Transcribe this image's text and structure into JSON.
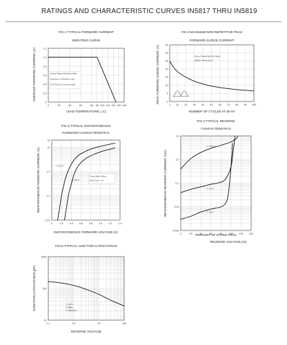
{
  "page": {
    "title": "RATINGS AND CHARACTERISTIC CURVES IN5817 THRU IN5819"
  },
  "chart_data": [
    {
      "id": "fig1",
      "type": "line",
      "title": "FIG.1-TYPICAL FORWARD CURRENT",
      "subtitle": "DERATING CURVE",
      "xlabel": "LEAD TEMPERATURE, (     C)",
      "ylabel": "AVERAGE FORWARD CURRENT, (A)",
      "xscale": "linear",
      "yscale": "linear",
      "xlim": [
        0,
        140
      ],
      "ylim": [
        0,
        1.2
      ],
      "xticks": [
        0,
        20,
        40,
        60,
        80,
        90,
        100,
        110,
        120,
        130,
        140
      ],
      "yticks": [
        0,
        0.2,
        0.4,
        0.6,
        0.8,
        1.0,
        1.2
      ],
      "xtick_labels": [
        "0",
        "20",
        "40",
        "60",
        "80",
        "90",
        "100",
        "110",
        "120",
        "130",
        "140"
      ],
      "ytick_labels": [
        "0",
        "0.2",
        "0.4",
        "0.6",
        "0.8",
        "1.0",
        "1.2"
      ],
      "grid": true,
      "series": [
        {
          "x": [
            0,
            90,
            125
          ],
          "y": [
            1.0,
            1.0,
            0.0
          ]
        }
      ],
      "annotations": [
        {
          "text": "Single Phase     Half Wave 60Hz",
          "x": 4,
          "y": 0.62
        },
        {
          "text": "Inductive or Resistive           Load",
          "x": 4,
          "y": 0.5
        },
        {
          "text": "0.375\"(9.5mm) Lead Length",
          "x": 4,
          "y": 0.38
        }
      ]
    },
    {
      "id": "fig2",
      "type": "line",
      "title": "FIG.2-MAXIMUM NON-REPETITIVE PEAK",
      "subtitle": "FORWARD SURGE CURRENT",
      "xlabel": "NUMBER OF CYCLES AT 60 Hz",
      "ylabel": "PEAK FORWARD SURGE CURRENT, (A)",
      "xscale": "linear",
      "yscale": "linear",
      "xlim": [
        1,
        100
      ],
      "ylim": [
        0,
        35
      ],
      "xticks": [
        1,
        10,
        20,
        30,
        40,
        50,
        60,
        70,
        80,
        90,
        100
      ],
      "yticks": [
        0,
        5,
        10,
        15,
        20,
        25,
        30,
        35
      ],
      "xtick_labels": [
        "1",
        "10",
        "20",
        "30",
        "40",
        "50",
        "60",
        "70",
        "80",
        "90",
        "100"
      ],
      "ytick_labels": [
        "0",
        "5",
        "10",
        "15",
        "20",
        "25",
        "30",
        "35"
      ],
      "grid": true,
      "series": [
        {
          "x": [
            1,
            5,
            10,
            20,
            30,
            40,
            50,
            60,
            70,
            80,
            90,
            100
          ],
          "y": [
            25,
            21.5,
            18.5,
            15,
            12.5,
            10.8,
            9.5,
            8.6,
            7.9,
            7.3,
            6.9,
            6.5
          ]
        }
      ],
      "annotations": [
        {
          "text": "8.3ms Single Half Sine-Wave",
          "x": 30,
          "y": 27.5
        },
        {
          "text": "(JEDEC Method)    at   T",
          "x": 30,
          "y": 25
        }
      ]
    },
    {
      "id": "fig3",
      "type": "line",
      "title": "FIG.3-TYPICAL INSTANTANEOUS",
      "subtitle": "FORWARD CHARACTERISTICS",
      "xlabel": "INSTANTANEOUS FORWARD VOLTAGE,(V)",
      "ylabel": "INSTANTANEOUS FORWARD CURRENT, (A)",
      "xscale": "linear",
      "yscale": "log",
      "xlim": [
        0,
        1.4
      ],
      "ylim": [
        0.01,
        20
      ],
      "xticks": [
        0,
        0.2,
        0.4,
        0.6,
        0.8,
        1.0,
        1.2,
        1.4
      ],
      "yticks": [
        0.01,
        0.1,
        1,
        10,
        20
      ],
      "xtick_labels": [
        "0",
        "0.2",
        "0.4",
        "0.6",
        "0.8",
        "1.0",
        "1.2",
        "1.4"
      ],
      "ytick_labels": [
        "0.01",
        "0.1",
        "1.0",
        "10",
        "20"
      ],
      "grid": true,
      "series": [
        {
          "x": [
            0.12,
            0.16,
            0.2,
            0.25,
            0.3,
            0.4,
            0.5,
            0.6,
            0.8,
            1.0,
            1.3
          ],
          "y": [
            0.01,
            0.03,
            0.1,
            0.3,
            0.7,
            2.0,
            3.8,
            5.5,
            8.5,
            11,
            15
          ]
        },
        {
          "x": [
            0.26,
            0.3,
            0.34,
            0.4,
            0.46,
            0.55,
            0.7,
            0.9,
            1.1,
            1.3
          ],
          "y": [
            0.01,
            0.03,
            0.1,
            0.3,
            0.8,
            1.8,
            3.5,
            5.5,
            7.5,
            9.5
          ]
        }
      ],
      "annotations": [
        {
          "text": "T =125     C",
          "x": 0.08,
          "y": 1.6
        },
        {
          "text": "T =25     C",
          "x": 0.42,
          "y": 0.42
        },
        {
          "text": "Pulse Width 300us",
          "x": 0.78,
          "y": 0.6
        },
        {
          "text": "Duty Cycle, 1%",
          "x": 0.78,
          "y": 0.4
        }
      ]
    },
    {
      "id": "fig4",
      "type": "line",
      "title": "FIG.4-TYPICAL REVERSE",
      "subtitle": "CHARACTERISTICS",
      "xlabel": "PERCENT OF RATED PEAK",
      "xlabel2": "REVERSE VOLTAGE,(%)",
      "ylabel": "INSTANTANEOUS REVERSE CURRENT, (mA)",
      "xscale": "linear",
      "yscale": "log",
      "xlim": [
        0,
        140
      ],
      "ylim": [
        0.001,
        10
      ],
      "xticks": [
        0,
        20,
        40,
        60,
        80,
        100,
        120,
        140
      ],
      "yticks": [
        0.001,
        0.01,
        0.1,
        1,
        10
      ],
      "xtick_labels": [
        "0",
        "20",
        "40",
        "60",
        "80",
        "100",
        "120",
        "140"
      ],
      "ytick_labels": [
        "0.001",
        "0.01",
        "0.1",
        "1.0",
        "10"
      ],
      "grid": true,
      "series": [
        {
          "x": [
            0,
            20,
            40,
            60,
            80,
            100,
            110,
            114
          ],
          "y": [
            0.4,
            1.1,
            2.0,
            3.0,
            4.0,
            5.6,
            7.5,
            10
          ]
        },
        {
          "x": [
            0,
            20,
            40,
            60,
            80,
            90,
            100,
            104,
            108
          ],
          "y": [
            0.04,
            0.055,
            0.07,
            0.09,
            0.11,
            0.16,
            0.5,
            2.0,
            10
          ]
        },
        {
          "x": [
            0,
            20,
            40,
            60,
            80,
            90,
            95,
            100,
            103
          ],
          "y": [
            0.003,
            0.004,
            0.006,
            0.008,
            0.01,
            0.015,
            0.04,
            0.5,
            5
          ]
        }
      ],
      "annotations": [
        {
          "text": "T =125    C",
          "x": 52,
          "y": 3.4
        },
        {
          "text": "T =75    C",
          "x": 52,
          "y": 0.055
        },
        {
          "text": "T =25    C",
          "x": 52,
          "y": 0.0055
        }
      ]
    },
    {
      "id": "fig5",
      "type": "line",
      "title": "FIG.5-TYPICAL JUNCTION CAPACITANCE",
      "xlabel": "REVERSE VOLTAGE",
      "ylabel": "JUNCTION CAPACITANCE,(pF)",
      "xscale": "log",
      "yscale": "log",
      "xlim": [
        0.1,
        100
      ],
      "ylim": [
        10,
        1000
      ],
      "xticks": [
        0.1,
        1,
        10,
        100
      ],
      "yticks": [
        10,
        100,
        1000
      ],
      "xtick_labels": [
        "0.1",
        "1.0",
        "10",
        "100"
      ],
      "ytick_labels": [
        "10",
        "100",
        "1000"
      ],
      "grid": true,
      "series": [
        {
          "x": [
            0.1,
            0.3,
            1,
            3,
            10,
            30,
            100
          ],
          "y": [
            165,
            150,
            125,
            95,
            65,
            42,
            28
          ]
        }
      ],
      "annotations": [
        {
          "text": "T  =25     C",
          "x": 0.5,
          "y": 30
        },
        {
          "text": "f=1MHz",
          "x": 0.5,
          "y": 24
        },
        {
          "text": "V     =50mVp-p",
          "x": 0.5,
          "y": 19
        }
      ]
    }
  ]
}
